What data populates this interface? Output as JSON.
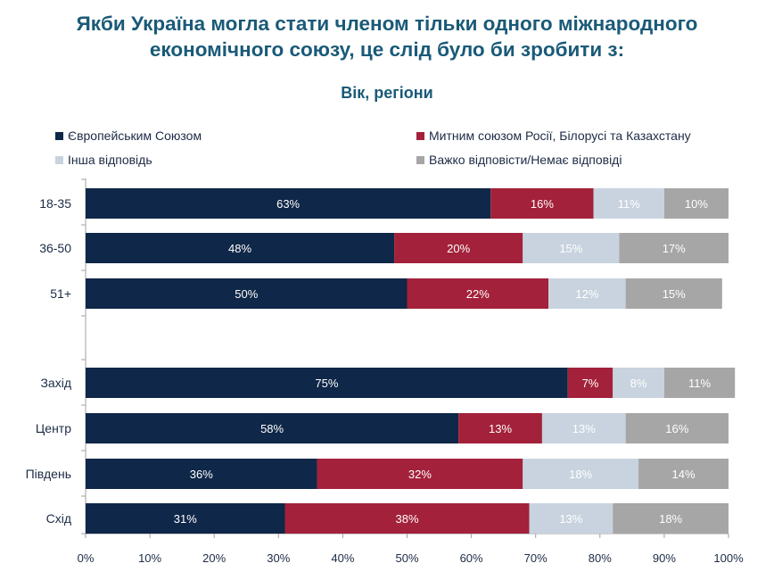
{
  "title_line1": "Якби Україна могла стати членом тільки одного міжнародного",
  "title_line2": "економічного союзу, це слід було би зробити з:",
  "subtitle": "Вік, регіони",
  "legend": [
    {
      "label": "Європейським Союзом",
      "color": "#0f2748"
    },
    {
      "label": "Митним союзом Росії, Білорусі та Казахстану",
      "color": "#a3213a"
    },
    {
      "label": "Інша відповідь",
      "color": "#c8d3df"
    },
    {
      "label": "Важко відповісти/Немає відповіді",
      "color": "#a6a6a6"
    }
  ],
  "chart_data": {
    "type": "bar",
    "orientation": "horizontal",
    "stacked": true,
    "title": "Якби Україна могла стати членом тільки одного міжнародного економічного союзу, це слід було би зробити з:",
    "subtitle": "Вік, регіони",
    "categories": [
      "18-35",
      "36-50",
      "51+",
      "Захід",
      "Центр",
      "Південь",
      "Схід"
    ],
    "series": [
      {
        "name": "Європейським Союзом",
        "color": "#0f2748",
        "label_color": "#ffffff",
        "values": [
          63,
          48,
          50,
          75,
          58,
          36,
          31
        ]
      },
      {
        "name": "Митним союзом Росії, Білорусі та Казахстану",
        "color": "#a3213a",
        "label_color": "#ffffff",
        "values": [
          16,
          20,
          22,
          7,
          13,
          32,
          38
        ]
      },
      {
        "name": "Інша відповідь",
        "color": "#c8d3df",
        "label_color": "#ffffff",
        "values": [
          11,
          15,
          12,
          8,
          13,
          18,
          13
        ]
      },
      {
        "name": "Важко відповісти/Немає відповіді",
        "color": "#a6a6a6",
        "label_color": "#ffffff",
        "values": [
          10,
          17,
          15,
          11,
          16,
          14,
          18
        ]
      }
    ],
    "xlim": [
      0,
      100
    ],
    "xticks": [
      "0%",
      "10%",
      "20%",
      "30%",
      "40%",
      "50%",
      "60%",
      "70%",
      "80%",
      "90%",
      "100%"
    ],
    "value_suffix": "%",
    "grid": false,
    "legend_position": "top"
  }
}
